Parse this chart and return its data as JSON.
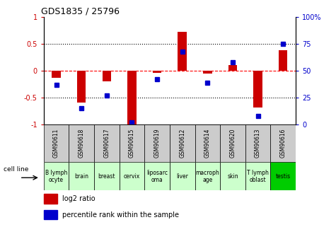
{
  "title": "GDS1835 / 25796",
  "samples": [
    "GSM90611",
    "GSM90618",
    "GSM90617",
    "GSM90615",
    "GSM90619",
    "GSM90612",
    "GSM90614",
    "GSM90620",
    "GSM90613",
    "GSM90616"
  ],
  "cell_lines": [
    "B lymph\nocyte",
    "brain",
    "breast",
    "cervix",
    "liposarc\noma",
    "liver",
    "macroph\nage",
    "skin",
    "T lymph\noblast",
    "testis"
  ],
  "cell_line_colors": [
    "#ccffcc",
    "#ccffcc",
    "#ccffcc",
    "#ccffcc",
    "#ccffcc",
    "#ccffcc",
    "#ccffcc",
    "#ccffcc",
    "#ccffcc",
    "#00cc00"
  ],
  "log2_ratio": [
    -0.13,
    -0.59,
    -0.2,
    -1.02,
    -0.04,
    0.72,
    -0.05,
    0.1,
    -0.68,
    0.38
  ],
  "percentile_rank": [
    37,
    15,
    27,
    2,
    42,
    68,
    39,
    58,
    8,
    75
  ],
  "ylim_left": [
    -1,
    1
  ],
  "ylim_right": [
    0,
    100
  ],
  "yticks_left": [
    -1,
    -0.5,
    0,
    0.5,
    1
  ],
  "ytick_labels_left": [
    "-1",
    "-0.5",
    "0",
    "0.5",
    "1"
  ],
  "yticks_right": [
    0,
    25,
    50,
    75,
    100
  ],
  "ytick_labels_right": [
    "0",
    "25",
    "50",
    "75",
    "100%"
  ],
  "bar_color_red": "#cc0000",
  "dot_color_blue": "#0000cc",
  "bar_width": 0.35,
  "gsm_box_color": "#cccccc",
  "legend_red_label": "log2 ratio",
  "legend_blue_label": "percentile rank within the sample",
  "cell_line_label": "cell line"
}
